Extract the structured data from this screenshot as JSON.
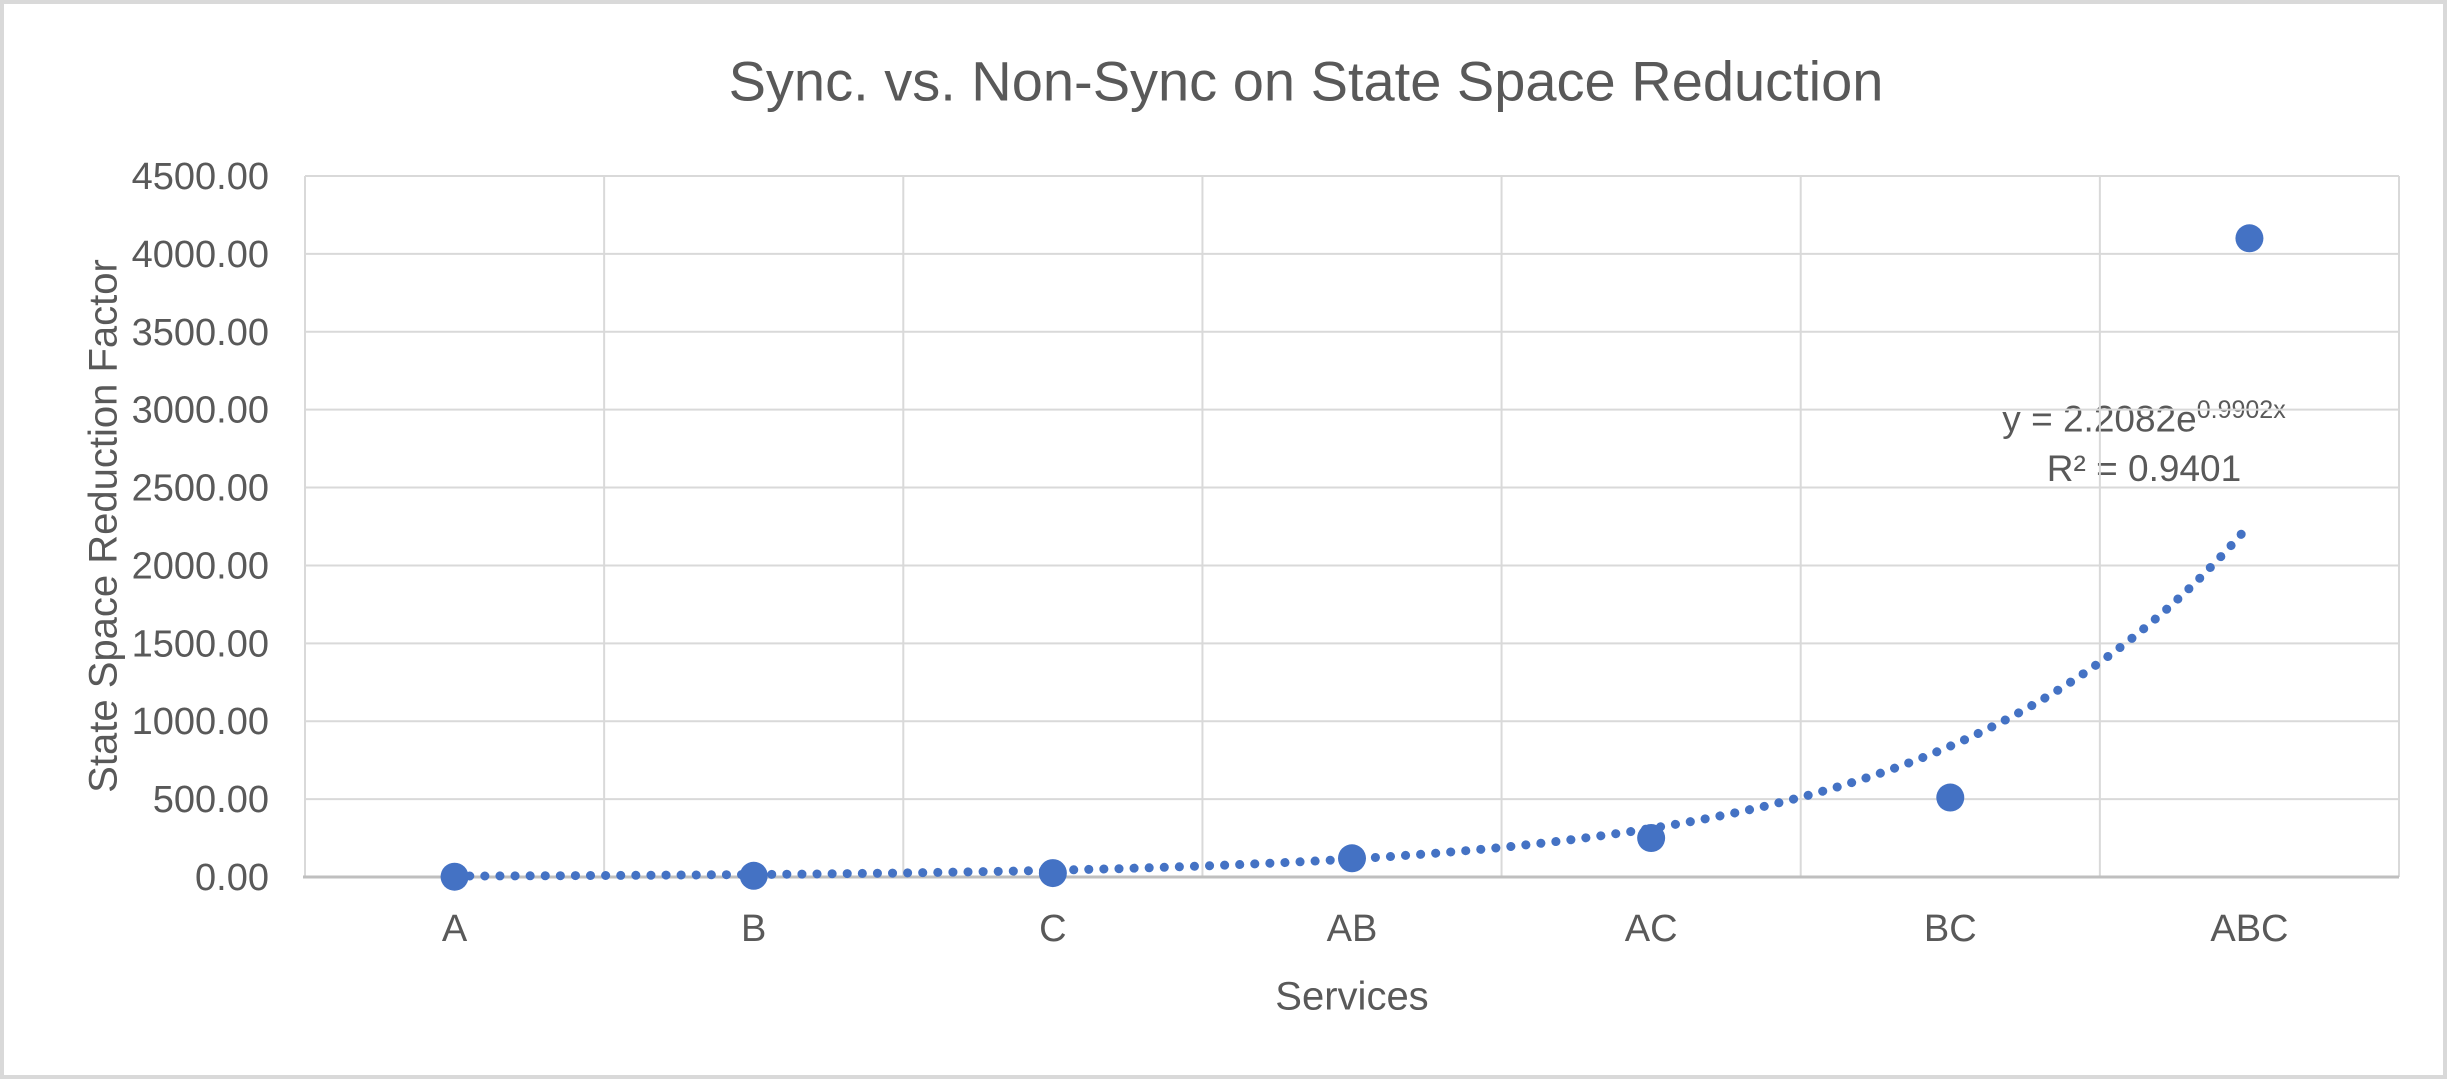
{
  "chart": {
    "title": "Sync. vs. Non-Sync on State Space Reduction",
    "xlabel": "Services",
    "ylabel": "State Space Reduction Factor",
    "annotation": {
      "equation_base": "y = 2.2082e",
      "equation_exponent": "0.9902x",
      "r_squared": "R² = 0.9401"
    }
  },
  "chart_data": {
    "type": "scatter",
    "title": "Sync. vs. Non-Sync on State Space Reduction",
    "xlabel": "Services",
    "ylabel": "State Space Reduction Factor",
    "categories": [
      "A",
      "B",
      "C",
      "AB",
      "AC",
      "BC",
      "ABC"
    ],
    "values": [
      2,
      8,
      25,
      120,
      250,
      510,
      4100
    ],
    "y_axis": {
      "min": 0,
      "max": 4500,
      "step": 500,
      "tick_labels": [
        "0.00",
        "500.00",
        "1000.00",
        "1500.00",
        "2000.00",
        "2500.00",
        "3000.00",
        "3500.00",
        "4000.00",
        "4500.00"
      ]
    },
    "grid": "both",
    "legend": "none",
    "trendline": {
      "type": "exponential",
      "a": 2.2082,
      "b": 0.9902,
      "equation": "y = 2.2082e^(0.9902x)",
      "r2": 0.9401,
      "x_start": 1,
      "x_end": 6.99
    },
    "colors": {
      "marker": "#4472c4",
      "trendline": "#4472c4",
      "text": "#595959",
      "gridline": "#d9d9d9",
      "axis_line": "#bfbfbf"
    }
  }
}
